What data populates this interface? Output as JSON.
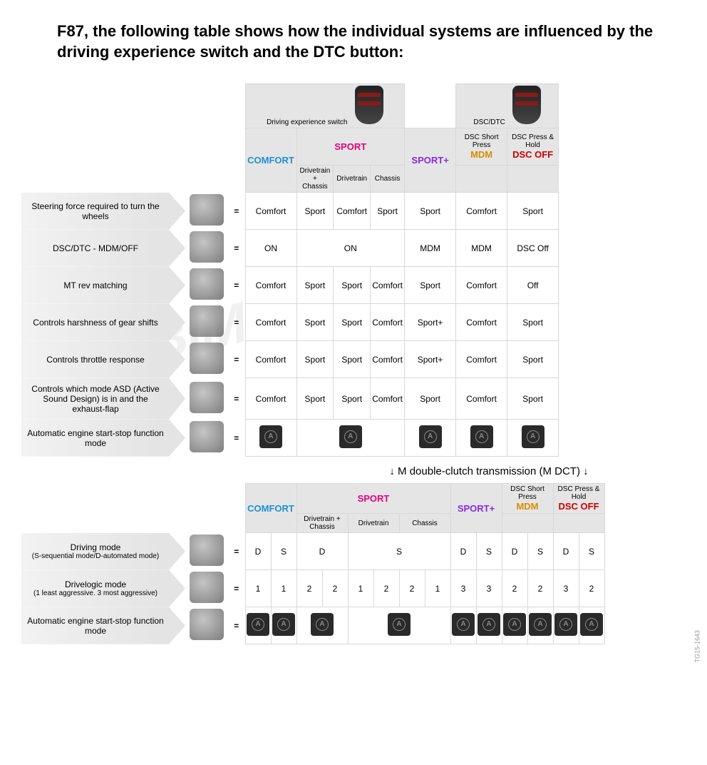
{
  "title": "F87, the following table shows how the individual systems are influenced by the driving experience switch and the DTC button:",
  "header": {
    "drivingSwitchLabel": "Driving experience switch",
    "dscDtcLabel": "DSC/DTC",
    "comfort": "COMFORT",
    "sport": "SPORT",
    "sportSub": {
      "dc": "Drivetrain + Chassis",
      "d": "Drivetrain",
      "c": "Chassis"
    },
    "sportPlus": "SPORT+",
    "dscShort": "DSC Short Press",
    "mdm": "MDM",
    "dscHold": "DSC Press & Hold",
    "dscOff": "DSC OFF"
  },
  "rows1": [
    {
      "label": "Steering force required to turn the wheels",
      "cells": [
        "Comfort",
        "Sport",
        "Comfort",
        "Sport",
        "Sport",
        "Comfort",
        "Sport"
      ]
    },
    {
      "label": "DSC/DTC - MDM/OFF",
      "cells": [
        "ON",
        "ON",
        "",
        "",
        "MDM",
        "MDM",
        "DSC Off"
      ],
      "merge3": true
    },
    {
      "label": "MT rev matching",
      "cells": [
        "Comfort",
        "Sport",
        "Sport",
        "Comfort",
        "Sport",
        "Comfort",
        "Off"
      ]
    },
    {
      "label": "Controls harshness of gear shifts",
      "cells": [
        "Comfort",
        "Sport",
        "Sport",
        "Comfort",
        "Sport+",
        "Comfort",
        "Sport"
      ]
    },
    {
      "label": "Controls throttle response",
      "cells": [
        "Comfort",
        "Sport",
        "Sport",
        "Comfort",
        "Sport+",
        "Comfort",
        "Sport"
      ]
    },
    {
      "label": "Controls which mode ASD (Active Sound Design) is in and the exhaust-flap",
      "cells": [
        "Comfort",
        "Sport",
        "Sport",
        "Comfort",
        "Sport",
        "Comfort",
        "Sport"
      ]
    },
    {
      "label": "Automatic engine start-stop function mode",
      "startstop": true
    }
  ],
  "dctDivider": "↓ M double-clutch transmission (M DCT) ↓",
  "rows2": [
    {
      "label": "Driving mode",
      "sub": "(S-sequential mode/D-automated mode)",
      "c": [
        "D",
        "S"
      ],
      "s": [
        [
          "D",
          ""
        ],
        [
          "",
          "S"
        ],
        [
          "",
          ""
        ]
      ],
      "sMerge": true,
      "sp": [
        "D",
        "S"
      ],
      "m": [
        "D",
        "S"
      ],
      "o": [
        "D",
        "S"
      ]
    },
    {
      "label": "Drivelogic mode",
      "sub": "(1 least aggressive. 3 most aggressive)",
      "c": [
        "1",
        "1"
      ],
      "s": [
        [
          "2",
          "2"
        ],
        [
          "1",
          "2"
        ],
        [
          "2",
          "1"
        ]
      ],
      "sp": [
        "3",
        "3"
      ],
      "m": [
        "2",
        "2"
      ],
      "o": [
        "3",
        "2"
      ]
    },
    {
      "label": "Automatic engine start-stop function mode",
      "startstop": true,
      "c": [
        "@",
        "@"
      ],
      "s": [
        [
          "@",
          ""
        ],
        [
          "",
          "@"
        ],
        [
          "",
          ""
        ]
      ],
      "sMerge": true,
      "sp": [
        "@",
        "@"
      ],
      "m": [
        "@",
        "@"
      ],
      "o": [
        "@",
        "@"
      ]
    }
  ],
  "sidecode": "TG15-1643"
}
